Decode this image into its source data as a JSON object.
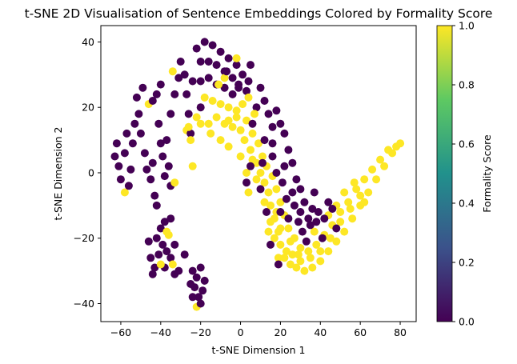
{
  "chart_data": {
    "type": "scatter",
    "title": "t-SNE 2D Visualisation of Sentence Embeddings Colored by Formality Score",
    "xlabel": "t-SNE Dimension 1",
    "ylabel": "t-SNE Dimension 2",
    "xlim": [
      -70,
      88
    ],
    "ylim": [
      -45.5,
      45
    ],
    "xticks": [
      -60,
      -40,
      -20,
      0,
      20,
      40,
      60,
      80
    ],
    "yticks": [
      -40,
      -20,
      0,
      20,
      40
    ],
    "grid": false,
    "legend": "none",
    "colorbar": {
      "label": "Formality Score",
      "range": [
        0.0,
        1.0
      ],
      "ticks": [
        0.0,
        0.2,
        0.4,
        0.6,
        0.8,
        1.0
      ],
      "tick_labels": [
        "0.0",
        "0.2",
        "0.4",
        "0.6",
        "0.8",
        "1.0"
      ],
      "colormap": "viridis",
      "colormap_stops": [
        "#440154",
        "#3b528b",
        "#21918c",
        "#5ec962",
        "#fde725"
      ]
    },
    "informal_color": "#440154",
    "formal_color": "#fde725",
    "points": [
      [
        -62,
        9,
        0
      ],
      [
        -63,
        5,
        0
      ],
      [
        -61,
        2,
        0
      ],
      [
        -60,
        -2,
        0
      ],
      [
        -58,
        6,
        0
      ],
      [
        -57,
        12,
        0
      ],
      [
        -58,
        -6,
        1
      ],
      [
        -56,
        -4,
        0
      ],
      [
        -55,
        1,
        0
      ],
      [
        -54,
        9,
        0
      ],
      [
        -53,
        15,
        0
      ],
      [
        -51,
        18,
        0
      ],
      [
        -52,
        23,
        0
      ],
      [
        -49,
        26,
        0
      ],
      [
        -50,
        12,
        0
      ],
      [
        -48,
        6,
        0
      ],
      [
        -47,
        1,
        0
      ],
      [
        -45,
        -2,
        0
      ],
      [
        -44,
        3,
        0
      ],
      [
        -46,
        21,
        1
      ],
      [
        -44,
        22,
        0
      ],
      [
        -42,
        24,
        0
      ],
      [
        -40,
        27,
        0
      ],
      [
        -41,
        15,
        0
      ],
      [
        -40,
        9,
        0
      ],
      [
        -43,
        -7,
        0
      ],
      [
        -42,
        -10,
        0
      ],
      [
        -38,
        -1,
        0
      ],
      [
        -39,
        5,
        0
      ],
      [
        -36,
        2,
        0
      ],
      [
        -35,
        -4,
        0
      ],
      [
        -37,
        10,
        0
      ],
      [
        -35,
        18,
        0
      ],
      [
        -33,
        24,
        0
      ],
      [
        -31,
        29,
        0
      ],
      [
        -34,
        31,
        1
      ],
      [
        -30,
        34,
        0
      ],
      [
        -28,
        30,
        0
      ],
      [
        -27,
        24,
        0
      ],
      [
        -26,
        18,
        0
      ],
      [
        -27,
        13,
        1
      ],
      [
        -25,
        12,
        0
      ],
      [
        -24,
        2,
        1
      ],
      [
        -33,
        -3,
        1
      ],
      [
        -40,
        -17,
        0
      ],
      [
        -38,
        -15,
        0
      ],
      [
        -35,
        -14,
        0
      ],
      [
        -42,
        -20,
        0
      ],
      [
        -39,
        -22,
        0
      ],
      [
        -37,
        -24,
        0
      ],
      [
        -35,
        -26,
        0
      ],
      [
        -41,
        -25,
        0
      ],
      [
        -38,
        -29,
        0
      ],
      [
        -34,
        -28,
        1
      ],
      [
        -33,
        -31,
        0
      ],
      [
        -31,
        -30,
        0
      ],
      [
        -43,
        -29,
        0
      ],
      [
        -40,
        -28,
        1
      ],
      [
        -36,
        -19,
        1
      ],
      [
        -46,
        -21,
        0
      ],
      [
        -45,
        -26,
        0
      ],
      [
        -44,
        -31,
        0
      ],
      [
        -33,
        -22,
        0
      ],
      [
        -37,
        -18,
        1
      ],
      [
        -24,
        -30,
        0
      ],
      [
        -22,
        -32,
        0
      ],
      [
        -20,
        -29,
        0
      ],
      [
        -23,
        -35,
        0
      ],
      [
        -19,
        -36,
        0
      ],
      [
        -21,
        -38,
        0
      ],
      [
        -24,
        -38,
        0
      ],
      [
        -22,
        -41,
        1
      ],
      [
        -20,
        -40,
        0
      ],
      [
        -25,
        -34,
        0
      ],
      [
        -18,
        -33,
        0
      ],
      [
        -28,
        -25,
        0
      ],
      [
        -22,
        38,
        0
      ],
      [
        -18,
        40,
        0
      ],
      [
        -14,
        39,
        0
      ],
      [
        -10,
        37,
        0
      ],
      [
        -6,
        35,
        0
      ],
      [
        -2,
        33,
        0
      ],
      [
        1,
        30,
        0
      ],
      [
        4,
        28,
        0
      ],
      [
        -20,
        34,
        0
      ],
      [
        -16,
        34,
        0
      ],
      [
        -12,
        33,
        0
      ],
      [
        -8,
        31,
        0
      ],
      [
        -4,
        29,
        0
      ],
      [
        -1,
        27,
        0
      ],
      [
        3,
        25,
        0
      ],
      [
        -24,
        28,
        0
      ],
      [
        -20,
        28,
        0
      ],
      [
        -16,
        29,
        0
      ],
      [
        -12,
        27,
        0
      ],
      [
        -8,
        26,
        0
      ],
      [
        -4,
        24,
        0
      ],
      [
        -18,
        23,
        1
      ],
      [
        -14,
        22,
        1
      ],
      [
        -10,
        21,
        1
      ],
      [
        -6,
        20,
        1
      ],
      [
        -2,
        19,
        1
      ],
      [
        1,
        21,
        1
      ],
      [
        -20,
        20,
        0
      ],
      [
        -22,
        17,
        1
      ],
      [
        -20,
        15,
        1
      ],
      [
        -16,
        15,
        1
      ],
      [
        -12,
        17,
        1
      ],
      [
        -8,
        15,
        1
      ],
      [
        -4,
        14,
        1
      ],
      [
        0,
        13,
        1
      ],
      [
        -25,
        10,
        1
      ],
      [
        -15,
        12,
        1
      ],
      [
        -6,
        16,
        1
      ],
      [
        -2,
        17,
        1
      ],
      [
        3,
        16,
        1
      ],
      [
        6,
        15,
        0
      ],
      [
        8,
        20,
        0
      ],
      [
        10,
        26,
        0
      ],
      [
        12,
        22,
        0
      ],
      [
        14,
        18,
        0
      ],
      [
        16,
        14,
        0
      ],
      [
        18,
        19,
        0
      ],
      [
        20,
        15,
        0
      ],
      [
        22,
        12,
        0
      ],
      [
        24,
        7,
        0
      ],
      [
        26,
        3,
        0
      ],
      [
        28,
        -2,
        0
      ],
      [
        30,
        -5,
        0
      ],
      [
        32,
        -9,
        0
      ],
      [
        34,
        -14,
        0
      ],
      [
        36,
        -11,
        0
      ],
      [
        38,
        -15,
        0
      ],
      [
        -2,
        35,
        1
      ],
      [
        -8,
        29,
        1
      ],
      [
        4,
        23,
        1
      ],
      [
        -26,
        14,
        1
      ],
      [
        -11,
        27,
        1
      ],
      [
        -7,
        31,
        0
      ],
      [
        5,
        33,
        0
      ],
      [
        -1,
        26,
        0
      ],
      [
        7,
        18,
        1
      ],
      [
        2,
        10,
        1
      ],
      [
        5,
        7,
        1
      ],
      [
        8,
        3,
        1
      ],
      [
        10,
        0,
        1
      ],
      [
        12,
        -3,
        1
      ],
      [
        14,
        -6,
        1
      ],
      [
        15,
        -10,
        1
      ],
      [
        17,
        -14,
        1
      ],
      [
        19,
        -18,
        1
      ],
      [
        20,
        -22,
        1
      ],
      [
        22,
        -26,
        1
      ],
      [
        25,
        -28,
        1
      ],
      [
        28,
        -29,
        1
      ],
      [
        32,
        -30,
        1
      ],
      [
        36,
        -29,
        1
      ],
      [
        40,
        -27,
        1
      ],
      [
        44,
        -24,
        1
      ],
      [
        48,
        -21,
        1
      ],
      [
        52,
        -18,
        1
      ],
      [
        56,
        -14,
        1
      ],
      [
        60,
        -10,
        1
      ],
      [
        64,
        -6,
        1
      ],
      [
        68,
        -2,
        1
      ],
      [
        72,
        2,
        1
      ],
      [
        76,
        6,
        1
      ],
      [
        80,
        9,
        1
      ],
      [
        6,
        12,
        1
      ],
      [
        9,
        9,
        1
      ],
      [
        11,
        5,
        1
      ],
      [
        13,
        2,
        1
      ],
      [
        16,
        -1,
        1
      ],
      [
        18,
        -5,
        1
      ],
      [
        20,
        -9,
        1
      ],
      [
        22,
        -13,
        1
      ],
      [
        24,
        -17,
        1
      ],
      [
        27,
        -20,
        1
      ],
      [
        30,
        -23,
        1
      ],
      [
        34,
        -24,
        1
      ],
      [
        38,
        -22,
        1
      ],
      [
        42,
        -19,
        1
      ],
      [
        46,
        -16,
        1
      ],
      [
        50,
        -12,
        1
      ],
      [
        54,
        -9,
        1
      ],
      [
        58,
        -5,
        1
      ],
      [
        62,
        -2,
        1
      ],
      [
        66,
        1,
        1
      ],
      [
        70,
        4,
        1
      ],
      [
        74,
        7,
        1
      ],
      [
        78,
        8,
        1
      ],
      [
        17,
        -20,
        1
      ],
      [
        19,
        -26,
        1
      ],
      [
        23,
        -24,
        1
      ],
      [
        26,
        -25,
        1
      ],
      [
        30,
        -27,
        1
      ],
      [
        35,
        -26,
        1
      ],
      [
        40,
        -24,
        1
      ],
      [
        45,
        -20,
        1
      ],
      [
        50,
        -15,
        1
      ],
      [
        55,
        -11,
        1
      ],
      [
        60,
        -7,
        1
      ],
      [
        20,
        -17,
        1
      ],
      [
        25,
        -21,
        1
      ],
      [
        29,
        -25,
        1
      ],
      [
        37,
        -18,
        1
      ],
      [
        44,
        -13,
        1
      ],
      [
        48,
        -10,
        1
      ],
      [
        52,
        -6,
        1
      ],
      [
        57,
        -3,
        1
      ],
      [
        62,
        -9,
        1
      ],
      [
        6,
        4,
        1
      ],
      [
        8,
        -2,
        1
      ],
      [
        12,
        -9,
        1
      ],
      [
        15,
        -15,
        1
      ],
      [
        18,
        -12,
        1
      ],
      [
        14,
        -18,
        1
      ],
      [
        -10,
        10,
        1
      ],
      [
        -6,
        8,
        1
      ],
      [
        0,
        5,
        1
      ],
      [
        3,
        0,
        1
      ],
      [
        4,
        -6,
        1
      ],
      [
        5,
        2,
        0
      ],
      [
        10,
        -5,
        0
      ],
      [
        13,
        -12,
        0
      ],
      [
        18,
        0,
        0
      ],
      [
        16,
        5,
        0
      ],
      [
        21,
        -3,
        0
      ],
      [
        23,
        -8,
        0
      ],
      [
        24,
        -14,
        0
      ],
      [
        27,
        -10,
        0
      ],
      [
        29,
        -15,
        0
      ],
      [
        31,
        -18,
        0
      ],
      [
        35,
        -16,
        0
      ],
      [
        39,
        -12,
        0
      ],
      [
        42,
        -14,
        0
      ],
      [
        44,
        -9,
        0
      ],
      [
        46,
        -11,
        0
      ],
      [
        48,
        -17,
        0
      ],
      [
        33,
        -21,
        0
      ],
      [
        19,
        -28,
        0
      ],
      [
        15,
        -22,
        0
      ],
      [
        11,
        3,
        0
      ],
      [
        3,
        -3,
        0
      ],
      [
        26,
        -6,
        0
      ],
      [
        22,
        2,
        0
      ],
      [
        37,
        -6,
        0
      ],
      [
        41,
        -20,
        0
      ],
      [
        30,
        -12,
        0
      ],
      [
        20,
        -12,
        0
      ],
      [
        12,
        10,
        0
      ],
      [
        16,
        9,
        0
      ]
    ]
  }
}
